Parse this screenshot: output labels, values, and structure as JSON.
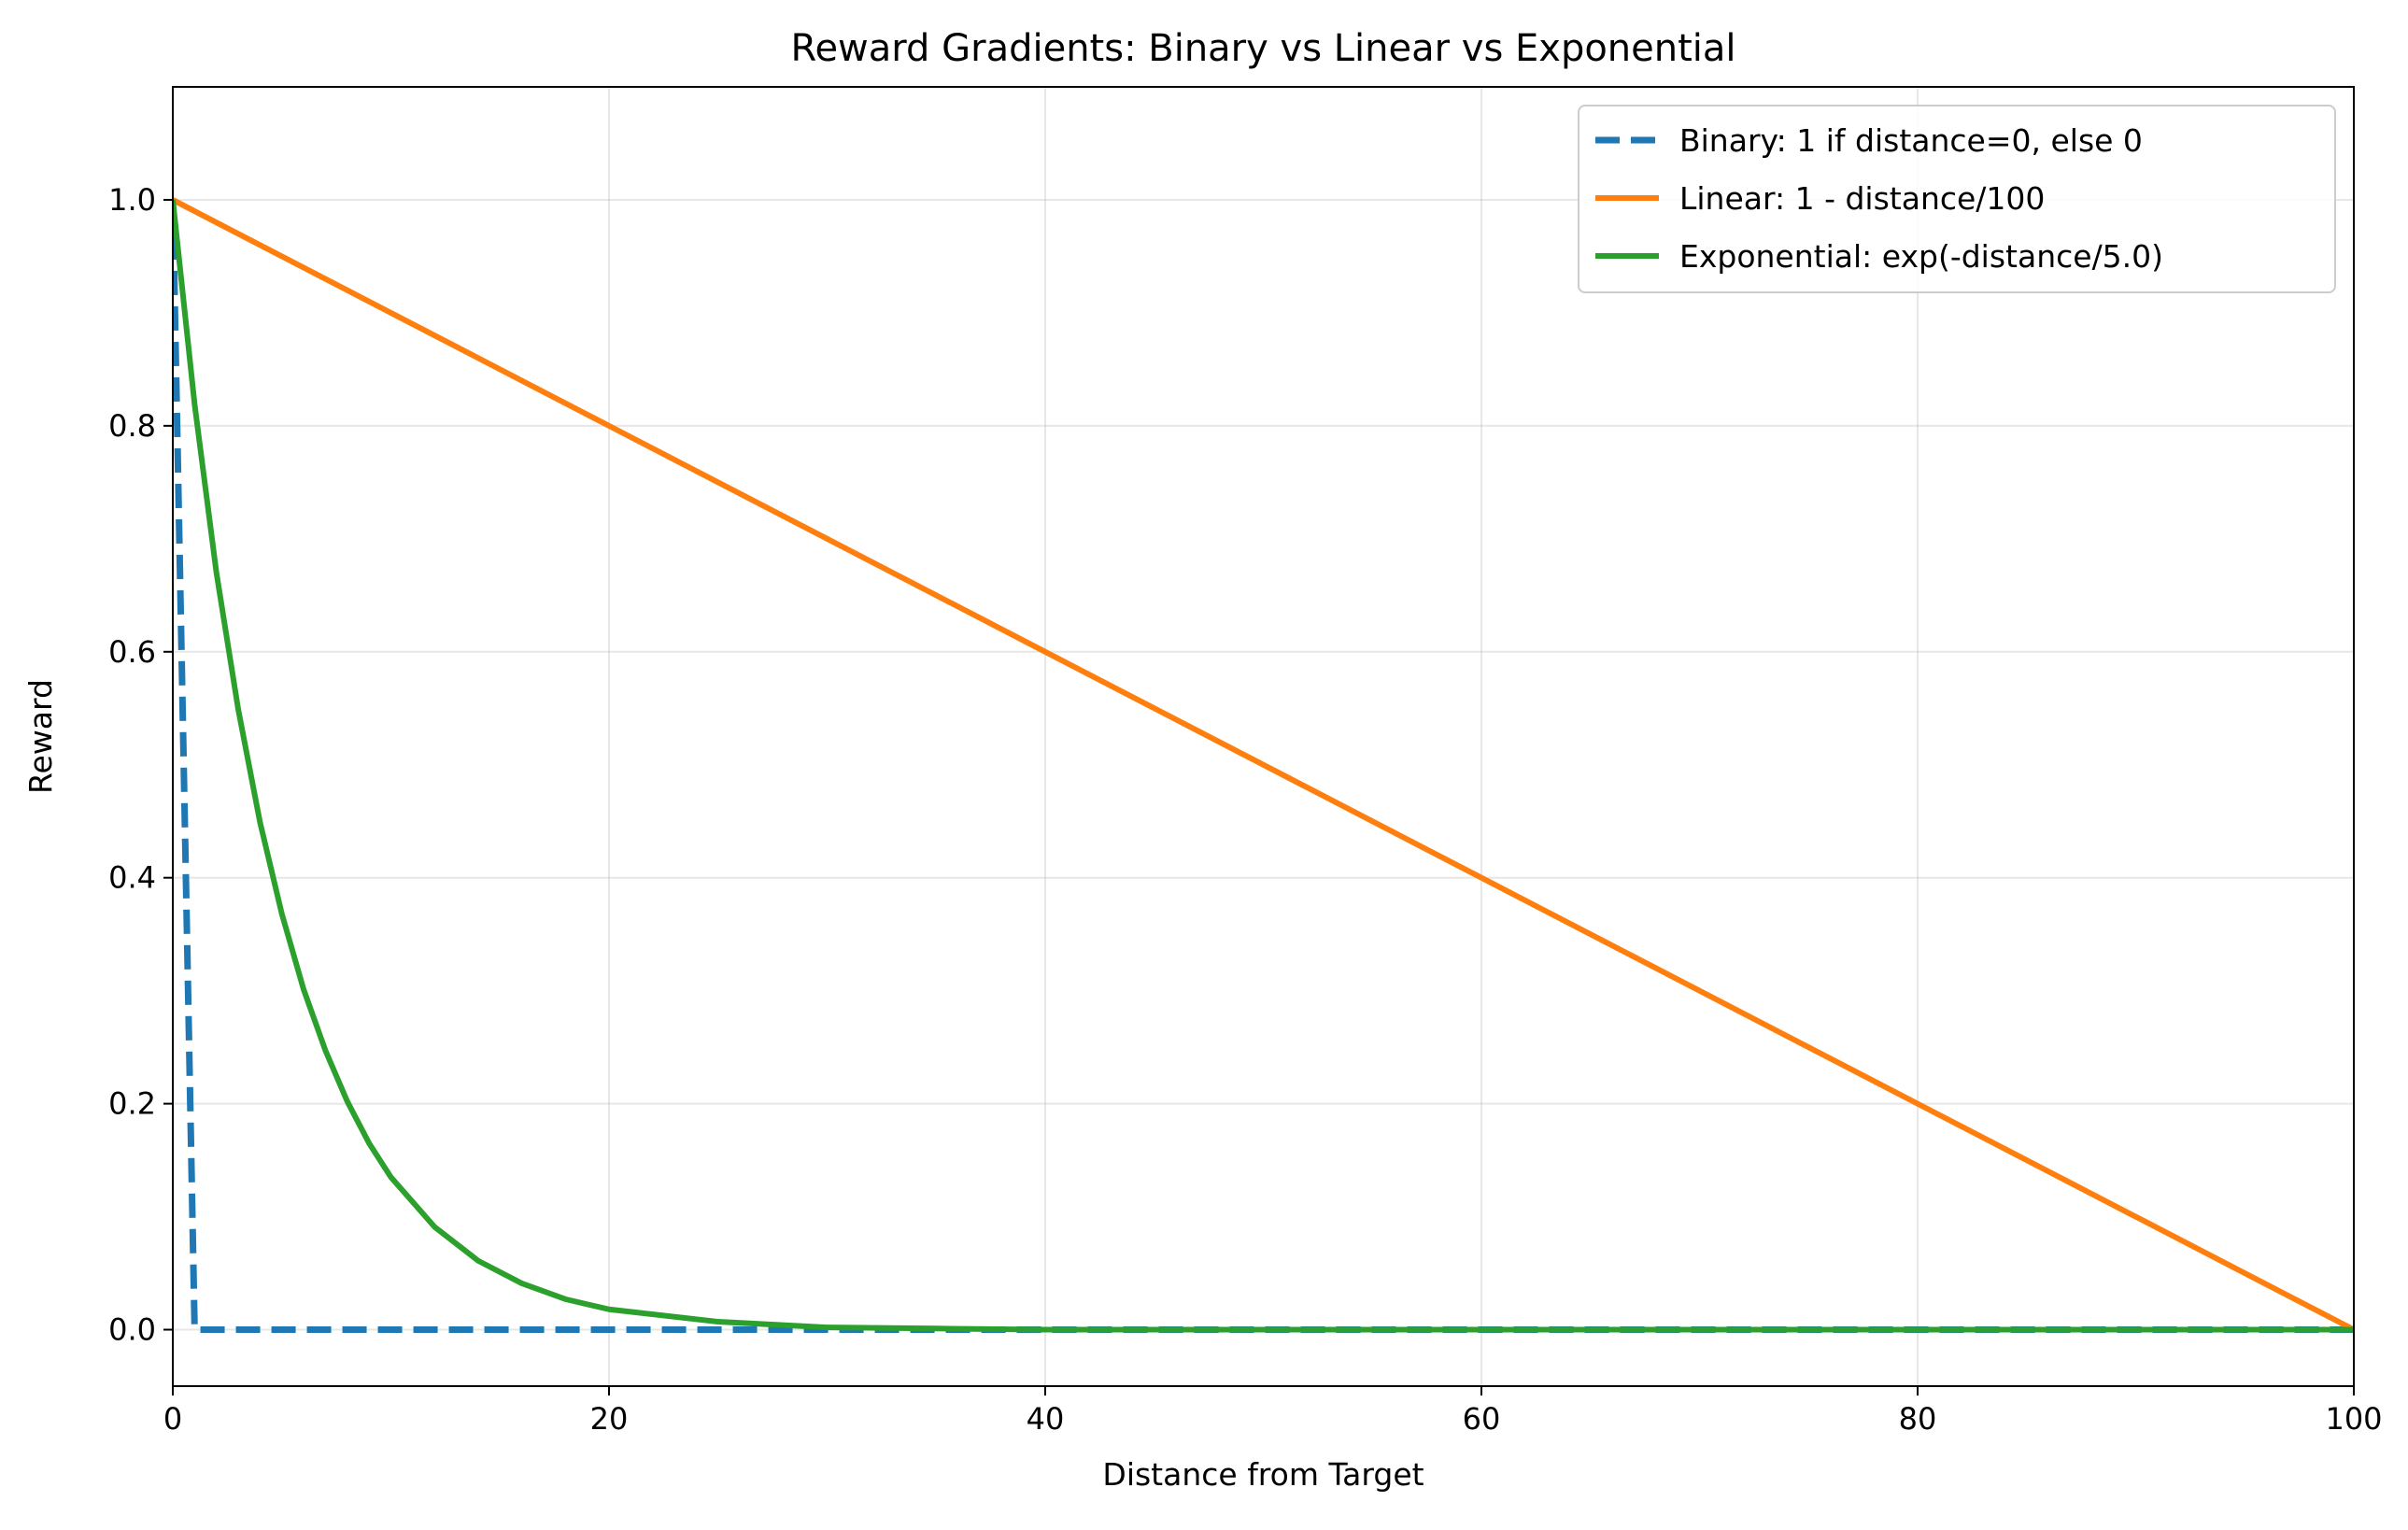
{
  "chart_data": {
    "type": "line",
    "title": "Reward Gradients: Binary vs Linear vs Exponential",
    "xlabel": "Distance from Target",
    "ylabel": "Reward",
    "xlim": [
      0,
      100
    ],
    "ylim": [
      -0.05,
      1.1
    ],
    "xticks": [
      0,
      20,
      40,
      60,
      80,
      100
    ],
    "xtick_labels": [
      "0",
      "20",
      "40",
      "60",
      "80",
      "100"
    ],
    "yticks": [
      0.0,
      0.2,
      0.4,
      0.6,
      0.8,
      1.0
    ],
    "ytick_labels": [
      "0.0",
      "0.2",
      "0.4",
      "0.6",
      "0.8",
      "1.0"
    ],
    "grid": true,
    "legend_position": "top-right",
    "series": [
      {
        "name": "Binary: 1 if distance=0, else 0",
        "color": "#1f77b4",
        "style": "dashed",
        "x": [
          0,
          1,
          2,
          5,
          10,
          20,
          30,
          40,
          50,
          60,
          70,
          80,
          90,
          100
        ],
        "y": [
          1,
          0,
          0,
          0,
          0,
          0,
          0,
          0,
          0,
          0,
          0,
          0,
          0,
          0
        ]
      },
      {
        "name": "Linear: 1 - distance/100",
        "color": "#ff7f0e",
        "style": "solid",
        "x": [
          0,
          20,
          40,
          60,
          80,
          100
        ],
        "y": [
          1.0,
          0.8,
          0.6,
          0.4,
          0.2,
          0.0
        ]
      },
      {
        "name": "Exponential: exp(-distance/5.0)",
        "color": "#2ca02c",
        "style": "solid",
        "x": [
          0,
          1,
          2,
          3,
          4,
          5,
          6,
          7,
          8,
          9,
          10,
          12,
          14,
          16,
          18,
          20,
          25,
          30,
          35,
          40,
          50,
          60,
          70,
          80,
          90,
          100
        ],
        "y": [
          1.0,
          0.819,
          0.67,
          0.549,
          0.449,
          0.368,
          0.301,
          0.247,
          0.202,
          0.165,
          0.135,
          0.091,
          0.061,
          0.041,
          0.027,
          0.018,
          0.007,
          0.002,
          0.001,
          0.0,
          0.0,
          0.0,
          0.0,
          0.0,
          0.0,
          0.0
        ]
      }
    ]
  }
}
